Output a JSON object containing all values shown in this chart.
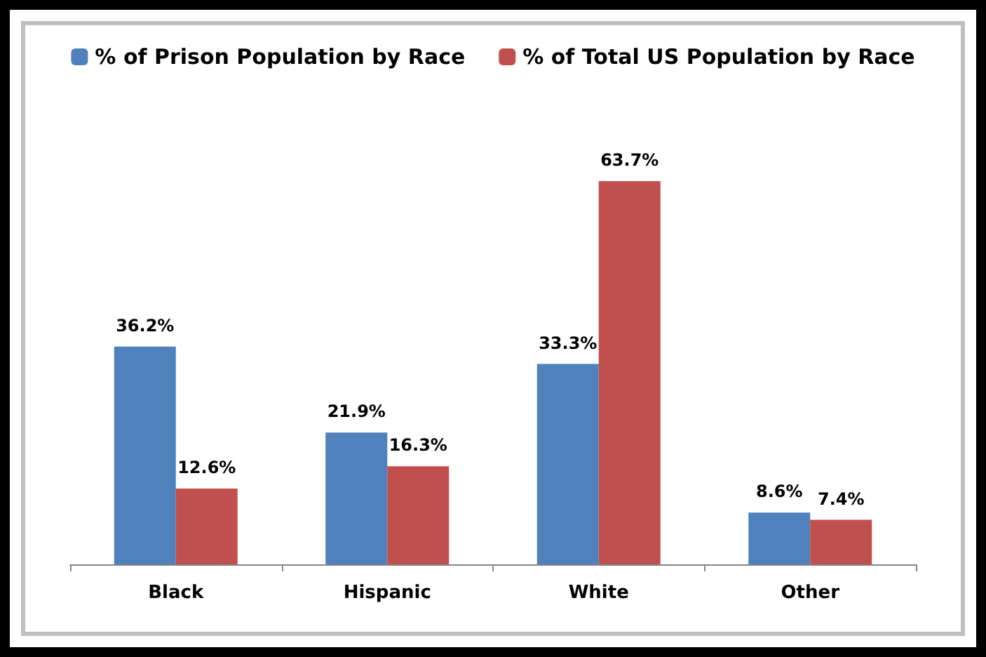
{
  "chart_data": {
    "type": "bar",
    "categories": [
      "Black",
      "Hispanic",
      "White",
      "Other"
    ],
    "series": [
      {
        "name": "% of Prison Population by Race",
        "color": "#4f81bd",
        "values": [
          36.2,
          21.9,
          33.3,
          8.6
        ],
        "value_labels": [
          "36.2%",
          "21.9%",
          "33.3%",
          "8.6%"
        ]
      },
      {
        "name": "% of Total US Population by Race",
        "color": "#c0504d",
        "values": [
          12.6,
          16.3,
          63.7,
          7.4
        ],
        "value_labels": [
          "12.6%",
          "16.3%",
          "63.7%",
          "7.4%"
        ]
      }
    ],
    "legend": "top"
  }
}
